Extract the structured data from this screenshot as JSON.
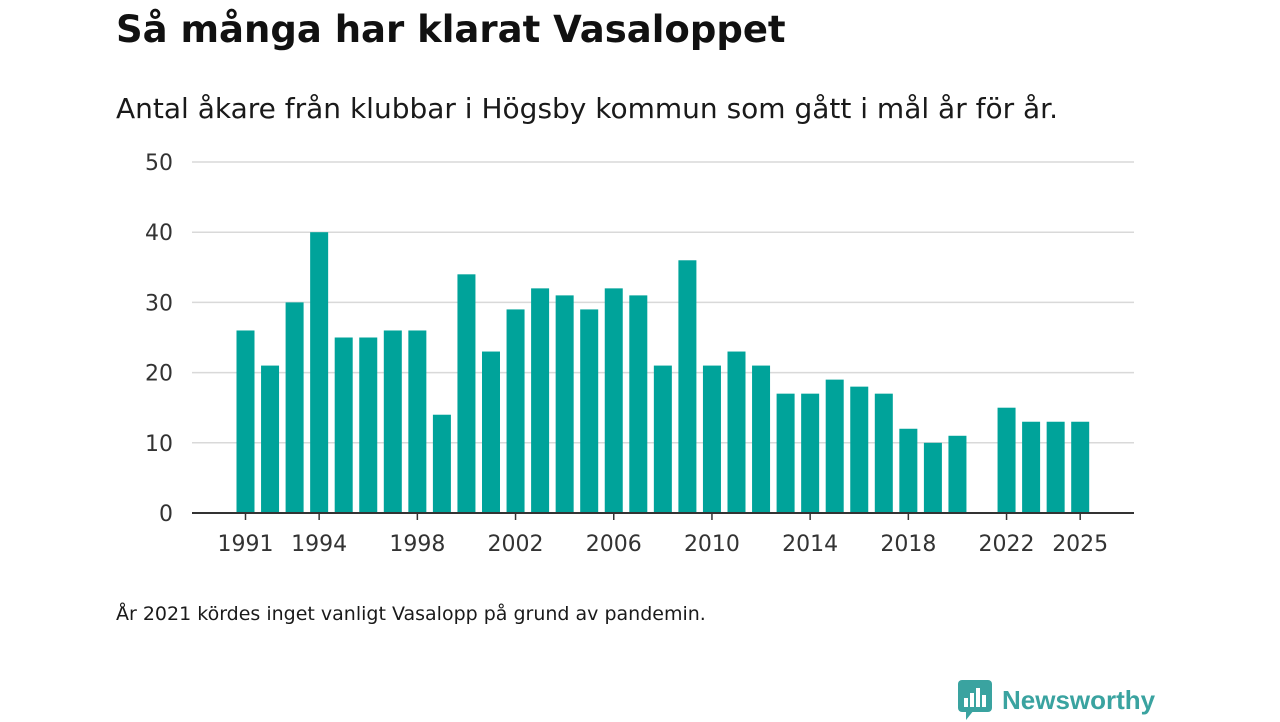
{
  "title": "Så många har klarat Vasaloppet",
  "subtitle": "Antal åkare från klubbar i Högsby kommun som gått i mål år för år.",
  "footnote": "År 2021 kördes inget vanligt Vasalopp på grund av pandemin.",
  "brand": {
    "name": "Newsworthy",
    "icon": "newsworthy-logo-icon",
    "color": "#3aa3a0"
  },
  "colors": {
    "bar": "#00a39a",
    "grid": "#d9d9d9",
    "axis": "#333333"
  },
  "chart_data": {
    "type": "bar",
    "title": "Så många har klarat Vasaloppet",
    "xlabel": "",
    "ylabel": "",
    "ylim": [
      0,
      50
    ],
    "yticks": [
      0,
      10,
      20,
      30,
      40,
      50
    ],
    "xticks": [
      "1991",
      "1994",
      "1998",
      "2002",
      "2006",
      "2010",
      "2014",
      "2018",
      "2022",
      "2025"
    ],
    "grid": true,
    "categories": [
      "1991",
      "1992",
      "1993",
      "1994",
      "1995",
      "1996",
      "1997",
      "1998",
      "1999",
      "2000",
      "2001",
      "2002",
      "2003",
      "2004",
      "2005",
      "2006",
      "2007",
      "2008",
      "2009",
      "2010",
      "2011",
      "2012",
      "2013",
      "2014",
      "2015",
      "2016",
      "2017",
      "2018",
      "2019",
      "2020",
      "2021",
      "2022",
      "2023",
      "2024",
      "2025"
    ],
    "values": [
      26,
      21,
      30,
      40,
      25,
      25,
      26,
      26,
      14,
      34,
      23,
      29,
      32,
      31,
      29,
      32,
      31,
      21,
      36,
      21,
      23,
      21,
      17,
      17,
      19,
      18,
      17,
      12,
      10,
      11,
      null,
      15,
      13,
      13,
      13
    ]
  }
}
